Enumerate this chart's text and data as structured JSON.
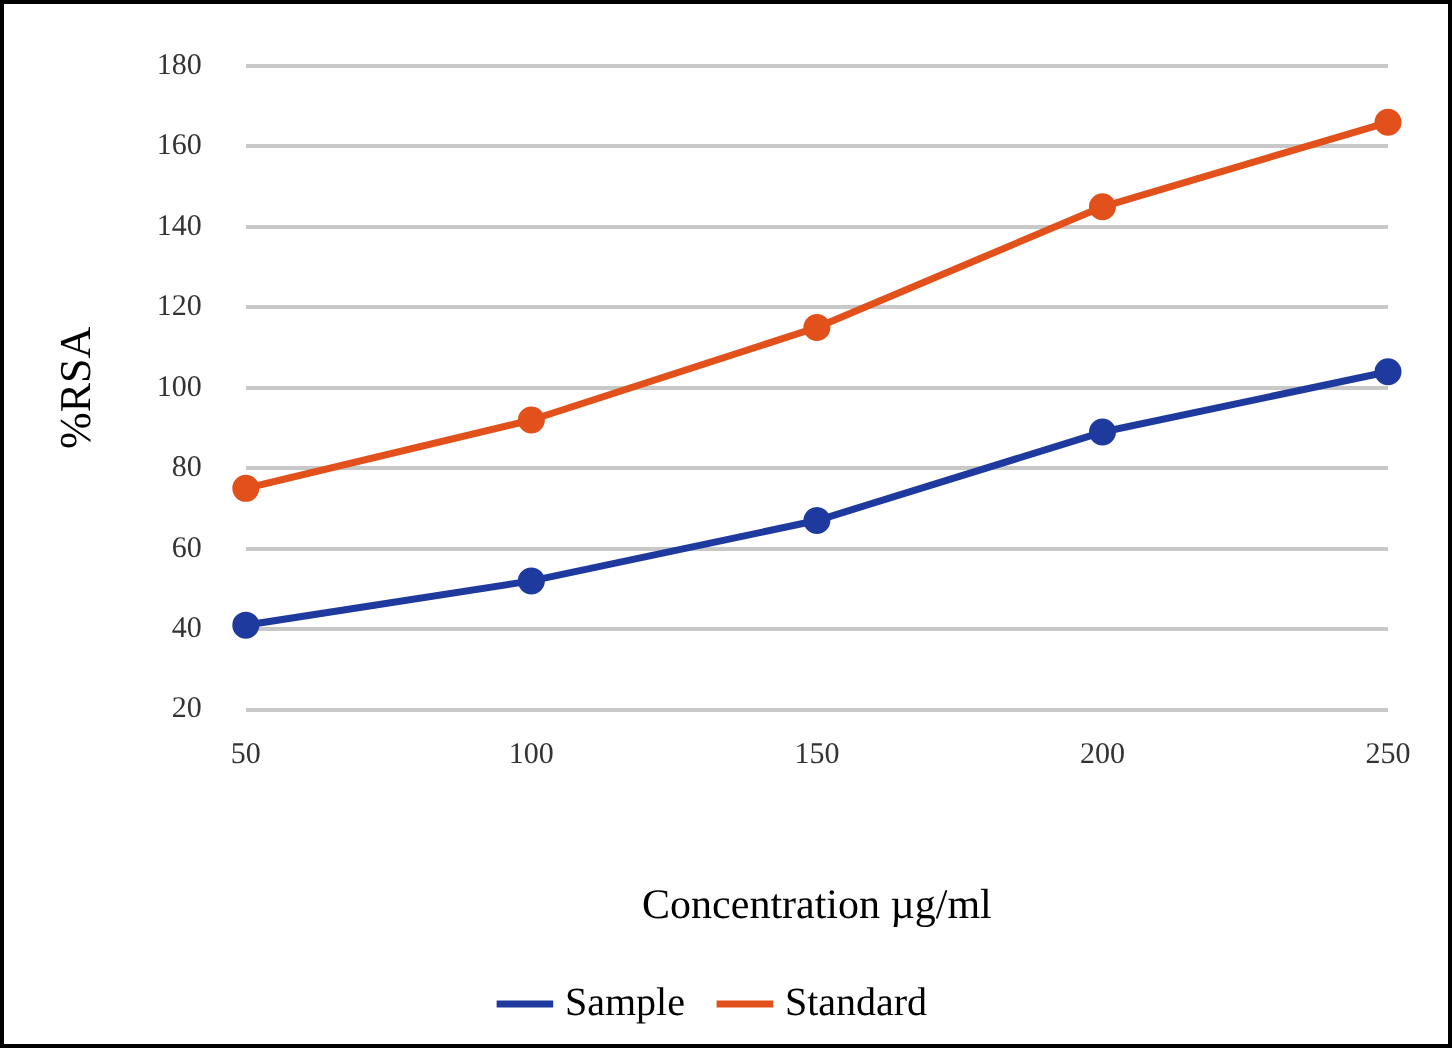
{
  "chart_data": {
    "type": "line",
    "xlabel": "Concentration µg/ml",
    "ylabel": "%RSA",
    "categories": [
      "50",
      "100",
      "150",
      "200",
      "250"
    ],
    "series": [
      {
        "name": "Sample",
        "color": "#1f3a9e",
        "values": [
          41,
          52,
          67,
          89,
          104
        ]
      },
      {
        "name": "Standard",
        "color": "#e2501c",
        "values": [
          75,
          92,
          115,
          145,
          166
        ]
      }
    ],
    "ylim": [
      20,
      180
    ],
    "yticks": [
      20,
      40,
      60,
      80,
      100,
      120,
      140,
      160,
      180
    ],
    "grid": "y",
    "legend": "bottom",
    "marker": "circle",
    "line_style": "solid"
  }
}
